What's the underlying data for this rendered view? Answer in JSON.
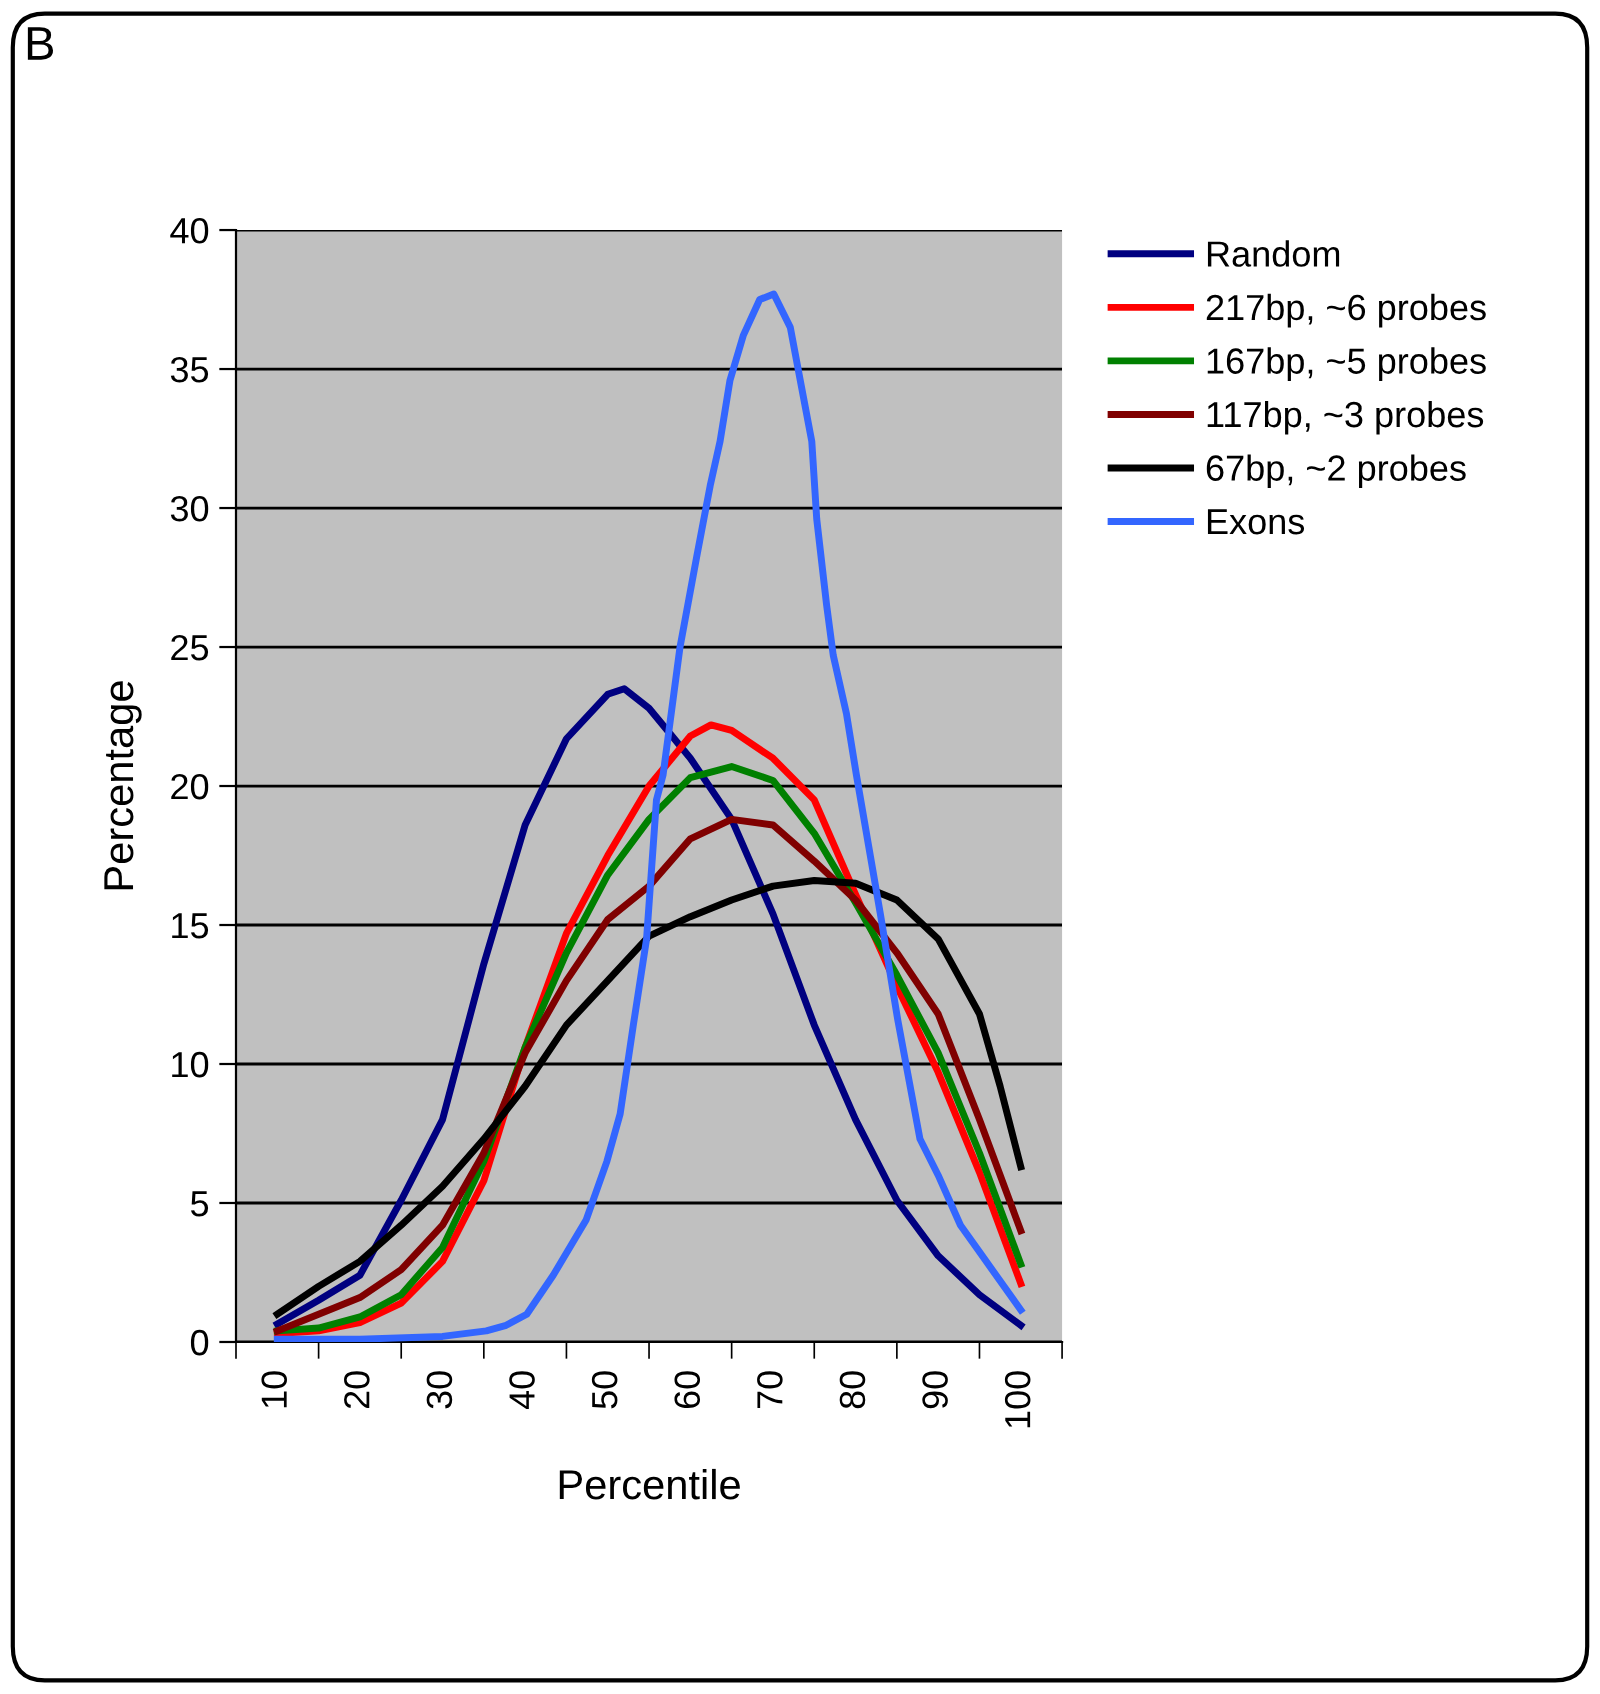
{
  "chart_data": {
    "type": "line",
    "xlabel": "Percentile",
    "ylabel": "Percentage",
    "annotations": [
      "B"
    ],
    "xlim": [
      5,
      105
    ],
    "ylim": [
      0,
      40
    ],
    "xticks": [
      {
        "value": 5,
        "label": null
      },
      10,
      {
        "value": 15,
        "label": null
      },
      20,
      {
        "value": 25,
        "label": null
      },
      30,
      {
        "value": 35,
        "label": null
      },
      40,
      {
        "value": 45,
        "label": null
      },
      50,
      {
        "value": 55,
        "label": null
      },
      60,
      {
        "value": 65,
        "label": null
      },
      70,
      {
        "value": 75,
        "label": null
      },
      80,
      {
        "value": 85,
        "label": null
      },
      90,
      {
        "value": 95,
        "label": null
      },
      100,
      {
        "value": 105,
        "label": null
      }
    ],
    "yticks": [
      0,
      5,
      10,
      15,
      20,
      25,
      30,
      35,
      40
    ],
    "grid": "y",
    "legend": "right",
    "marker": "none",
    "line_style": "solid",
    "series": [
      {
        "name": "Random",
        "color": "#000080",
        "x": [
          10,
          15,
          20,
          25,
          30,
          35,
          40,
          45,
          50,
          52,
          55,
          60,
          65,
          70,
          75,
          80,
          85,
          90,
          95,
          100
        ],
        "values": [
          0.65,
          1.5,
          2.4,
          5.1,
          8.0,
          13.6,
          18.6,
          21.7,
          23.3,
          23.5,
          22.8,
          21.0,
          18.8,
          15.4,
          11.4,
          8.0,
          5.1,
          3.1,
          1.7,
          0.6
        ]
      },
      {
        "name": "217bp, ~6 probes",
        "color": "#ff0000",
        "x": [
          10,
          15,
          20,
          25,
          30,
          35,
          40,
          45,
          50,
          55,
          60,
          62.5,
          65,
          70,
          75,
          80,
          85,
          90,
          95,
          100
        ],
        "values": [
          0.3,
          0.4,
          0.7,
          1.4,
          2.9,
          5.8,
          10.6,
          14.7,
          17.5,
          20.0,
          21.8,
          22.2,
          22.0,
          21.0,
          19.5,
          16.1,
          12.8,
          9.7,
          6.1,
          2.1
        ]
      },
      {
        "name": "167bp, ~5 probes",
        "color": "#008000",
        "x": [
          10,
          15,
          20,
          25,
          30,
          35,
          40,
          45,
          50,
          55,
          60,
          65,
          70,
          75,
          80,
          85,
          90,
          95,
          100
        ],
        "values": [
          0.4,
          0.5,
          0.9,
          1.7,
          3.4,
          6.5,
          10.6,
          14.0,
          16.8,
          18.8,
          20.3,
          20.7,
          20.2,
          18.3,
          15.8,
          13.2,
          10.4,
          6.8,
          2.8
        ]
      },
      {
        "name": "117bp, ~3 probes",
        "color": "#800000",
        "x": [
          10,
          15,
          20,
          25,
          30,
          35,
          40,
          45,
          50,
          55,
          60,
          65,
          70,
          75,
          80,
          85,
          90,
          95,
          100
        ],
        "values": [
          0.4,
          1.0,
          1.6,
          2.6,
          4.2,
          6.8,
          10.4,
          13.0,
          15.2,
          16.4,
          18.1,
          18.8,
          18.6,
          17.3,
          15.9,
          14.0,
          11.8,
          8.0,
          4.0
        ]
      },
      {
        "name": "67bp, ~2 probes",
        "color": "#000000",
        "x": [
          10,
          15,
          20,
          25,
          30,
          35,
          40,
          45,
          50,
          55,
          60,
          65,
          70,
          75,
          80,
          85,
          90,
          95,
          97.5,
          100
        ],
        "values": [
          1.0,
          2.0,
          2.9,
          4.2,
          5.6,
          7.3,
          9.2,
          11.4,
          13.0,
          14.6,
          15.3,
          15.9,
          16.4,
          16.6,
          16.5,
          15.9,
          14.5,
          11.8,
          9.2,
          6.3
        ]
      },
      {
        "name": "Exons",
        "color": "#3366ff",
        "x": [
          10,
          20,
          30,
          35.3,
          37.7,
          40.2,
          43.4,
          47.4,
          49.9,
          51.5,
          53.1,
          54.7,
          55.9,
          56.7,
          58.75,
          60.8,
          62.4,
          63.6,
          64.8,
          66.4,
          68.4,
          70.1,
          72.1,
          73.3,
          74.7,
          75.3,
          76.5,
          77.3,
          78.9,
          80.1,
          83.0,
          85.1,
          87.8,
          90,
          92.7,
          95.1,
          100
        ],
        "values": [
          0.1,
          0.1,
          0.2,
          0.4,
          0.6,
          1.0,
          2.4,
          4.4,
          6.5,
          8.2,
          11.4,
          14.5,
          19.5,
          20.4,
          25.0,
          28.3,
          30.8,
          32.4,
          34.6,
          36.2,
          37.5,
          37.7,
          36.5,
          34.6,
          32.4,
          29.6,
          26.5,
          24.7,
          22.6,
          20.4,
          15.4,
          11.6,
          7.3,
          6.0,
          4.2,
          3.2,
          1.15
        ]
      }
    ]
  }
}
